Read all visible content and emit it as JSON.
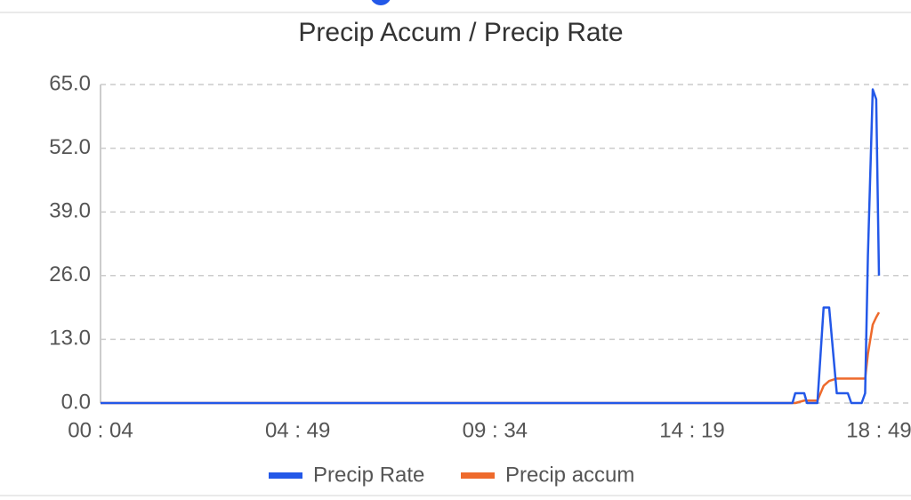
{
  "chart_data": {
    "type": "line",
    "title": "Precip Accum / Precip Rate",
    "x": [
      4,
      1004,
      1008,
      1021,
      1025,
      1040,
      1049,
      1057,
      1068,
      1084,
      1089,
      1104,
      1109,
      1113,
      1120,
      1125,
      1129
    ],
    "series": [
      {
        "name": "Precip Rate",
        "color": "#2358e8",
        "values": [
          0,
          0,
          2,
          2,
          0,
          0,
          19.5,
          19.5,
          2,
          2,
          0,
          0,
          2,
          30,
          64,
          62,
          26
        ]
      },
      {
        "name": "Precip accum",
        "color": "#ee6a2c",
        "values": [
          0,
          0,
          0,
          0.5,
          0.5,
          0.5,
          3.5,
          4.5,
          5,
          5,
          5,
          5,
          5,
          10,
          16,
          17.5,
          18.5
        ]
      }
    ],
    "xlim": [
      4,
      1129
    ],
    "xticks": [
      {
        "value": 4,
        "label": "00 : 04"
      },
      {
        "value": 289,
        "label": "04 : 49"
      },
      {
        "value": 574,
        "label": "09 : 34"
      },
      {
        "value": 859,
        "label": "14 : 19"
      },
      {
        "value": 1129,
        "label": "18 : 49"
      }
    ],
    "ylim": [
      0,
      65
    ],
    "yticks": [
      {
        "value": 0,
        "label": "0.0"
      },
      {
        "value": 13,
        "label": "13.0"
      },
      {
        "value": 26,
        "label": "26.0"
      },
      {
        "value": 39,
        "label": "39.0"
      },
      {
        "value": 52,
        "label": "52.0"
      },
      {
        "value": 65,
        "label": "65.0"
      }
    ],
    "grid": true
  }
}
